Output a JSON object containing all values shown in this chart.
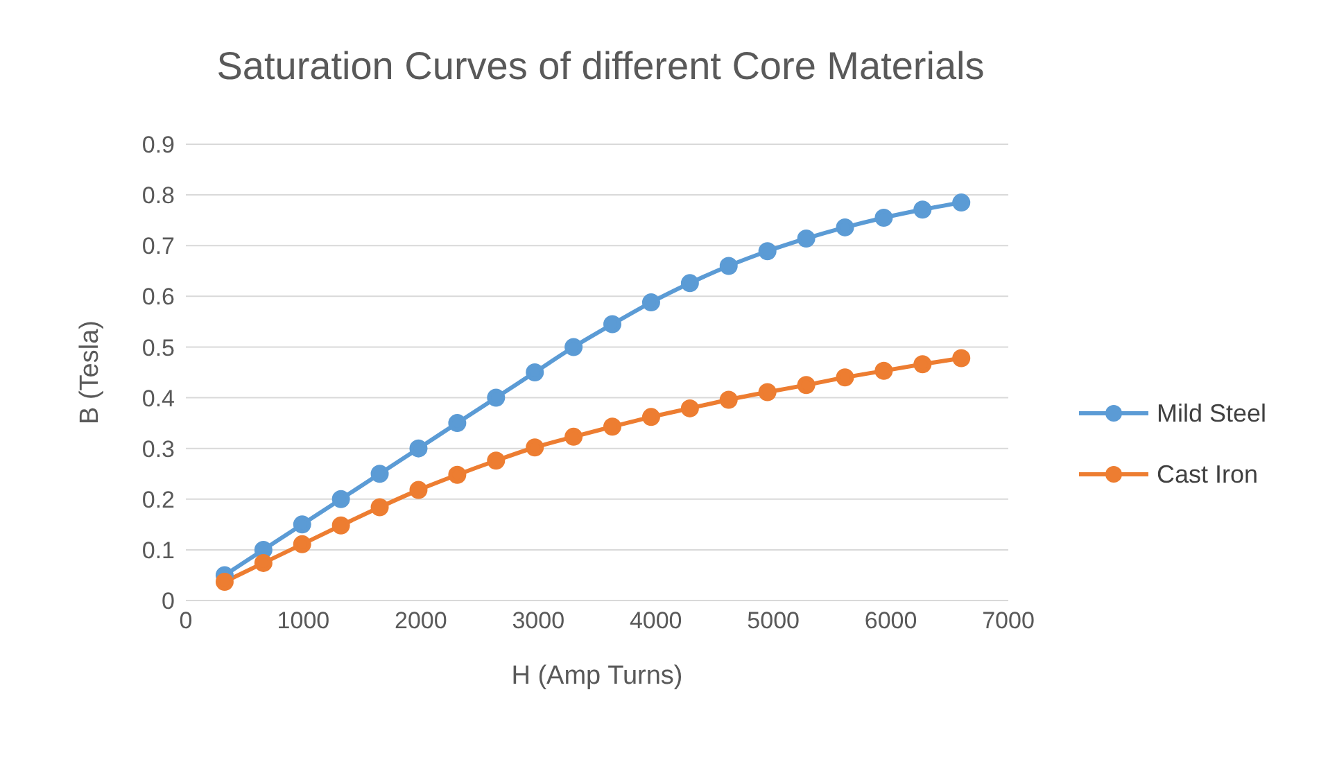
{
  "chart_data": {
    "type": "line",
    "title": "Saturation Curves of different Core Materials",
    "xlabel": "H (Amp Turns)",
    "ylabel": "B (Tesla)",
    "x": [
      330,
      660,
      990,
      1320,
      1650,
      1980,
      2310,
      2640,
      2970,
      3300,
      3630,
      3960,
      4290,
      4620,
      4950,
      5280,
      5610,
      5940,
      6270,
      6600
    ],
    "series": [
      {
        "name": "Mild Steel",
        "color": "#5b9bd5",
        "values": [
          0.05,
          0.1,
          0.15,
          0.2,
          0.25,
          0.3,
          0.35,
          0.4,
          0.45,
          0.5,
          0.545,
          0.588,
          0.626,
          0.66,
          0.689,
          0.714,
          0.736,
          0.755,
          0.771,
          0.785
        ]
      },
      {
        "name": "Cast Iron",
        "color": "#ed7d31",
        "values": [
          0.037,
          0.074,
          0.111,
          0.148,
          0.184,
          0.218,
          0.248,
          0.276,
          0.302,
          0.323,
          0.343,
          0.362,
          0.379,
          0.396,
          0.411,
          0.425,
          0.44,
          0.453,
          0.466,
          0.478
        ]
      }
    ],
    "xlim": [
      0,
      7000
    ],
    "xticks": [
      0,
      1000,
      2000,
      3000,
      4000,
      5000,
      6000,
      7000
    ],
    "ylim": [
      0,
      0.9
    ],
    "yticks": [
      0,
      0.1,
      0.2,
      0.3,
      0.4,
      0.5,
      0.6,
      0.7,
      0.8,
      0.9
    ],
    "grid": "y",
    "legend": "right",
    "marker": "circle",
    "line_style": "solid"
  }
}
